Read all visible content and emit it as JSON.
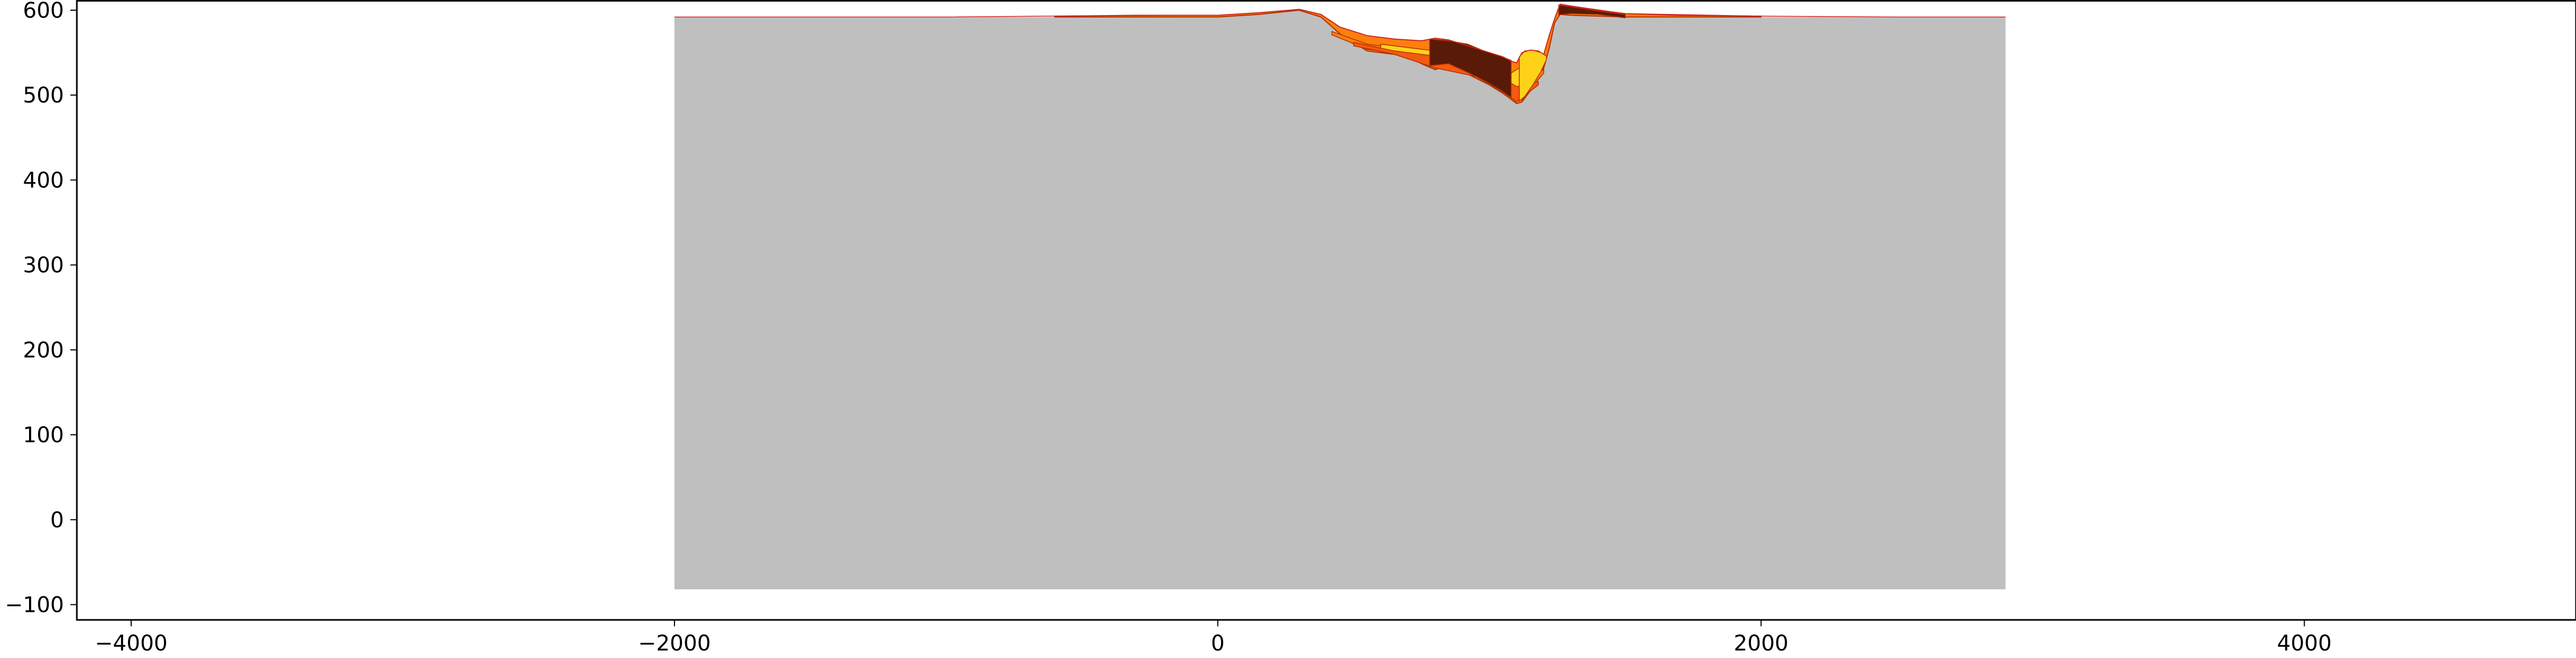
{
  "chart_data": {
    "type": "area",
    "title": "",
    "xlabel": "",
    "ylabel": "",
    "xlim": [
      -4200,
      5000
    ],
    "ylim": [
      -118,
      612
    ],
    "x_ticks": [
      -4000,
      -2000,
      0,
      2000,
      4000
    ],
    "x_tick_labels": [
      "−4000",
      "−2000",
      "0",
      "2000",
      "4000"
    ],
    "y_ticks": [
      -100,
      0,
      100,
      200,
      300,
      400,
      500,
      600
    ],
    "y_tick_labels": [
      "−100",
      "0",
      "100",
      "200",
      "300",
      "400",
      "500",
      "600"
    ],
    "grid": false,
    "legend": "none",
    "colors": {
      "basement": "#bfbfbf",
      "deposit_orange": "#ff7f0e",
      "deposit_red_orange": "#f45a10",
      "deposit_yellow": "#ffd21a",
      "deposit_dark": "#5a1a08",
      "deposit_line": "#b03000",
      "surface_line": "#d62728",
      "axis": "#000000"
    },
    "basement": {
      "bottom": -82,
      "x": [
        -2000,
        -1500,
        -1000,
        -500,
        0,
        150,
        300,
        380,
        450,
        550,
        650,
        700,
        750,
        800,
        850,
        900,
        950,
        1000,
        1050,
        1080,
        1100,
        1120,
        1150,
        1180,
        1200,
        1220,
        1240,
        1260,
        1300,
        1500,
        2000,
        2500,
        2900
      ],
      "y": [
        592,
        592,
        592,
        592,
        592,
        595,
        600,
        592,
        572,
        552,
        548,
        545,
        537,
        530,
        535,
        528,
        520,
        512,
        502,
        495,
        490,
        492,
        505,
        520,
        532,
        555,
        585,
        595,
        594,
        592,
        592,
        592,
        592
      ]
    },
    "deposit_top": {
      "x": [
        -600,
        -300,
        0,
        150,
        300,
        380,
        450,
        550,
        650,
        700,
        750,
        800,
        850,
        900,
        950,
        1000,
        1050,
        1080,
        1100,
        1120,
        1150,
        1180,
        1200,
        1220,
        1240,
        1260,
        1300,
        1400,
        1500,
        1700,
        2000
      ],
      "y": [
        593,
        594,
        594,
        597,
        601,
        595,
        580,
        570,
        566,
        565,
        564,
        567,
        565,
        560,
        555,
        550,
        545,
        540,
        538,
        550,
        553,
        552,
        548,
        570,
        590,
        607,
        605,
        600,
        596,
        594,
        593
      ]
    },
    "deposit_layers": [
      {
        "fill": "orange",
        "x": [
          420,
          550,
          650,
          750,
          850,
          950,
          1050,
          1100,
          1150,
          1200
        ],
        "y": [
          575,
          560,
          556,
          552,
          548,
          540,
          528,
          520,
          522,
          530
        ]
      },
      {
        "fill": "yellow",
        "x": [
          600,
          700,
          800,
          900,
          1000,
          1080,
          1120,
          1160,
          1200
        ],
        "y": [
          560,
          556,
          552,
          546,
          538,
          526,
          534,
          540,
          542
        ]
      },
      {
        "fill": "red_orange",
        "x": [
          500,
          650,
          800,
          950,
          1050,
          1100,
          1180
        ],
        "y": [
          562,
          552,
          546,
          534,
          520,
          510,
          516
        ]
      },
      {
        "fill": "yellow",
        "x": [
          1110,
          1130,
          1160,
          1190,
          1210
        ],
        "y": [
          545,
          552,
          553,
          550,
          546
        ]
      },
      {
        "fill": "dark",
        "x": [
          780,
          850,
          920,
          980,
          1040,
          1080
        ],
        "y": [
          566,
          564,
          560,
          552,
          546,
          541
        ]
      },
      {
        "fill": "dark",
        "x": [
          1255,
          1300,
          1400,
          1500
        ],
        "y": [
          606,
          604,
          599,
          595
        ]
      }
    ]
  }
}
